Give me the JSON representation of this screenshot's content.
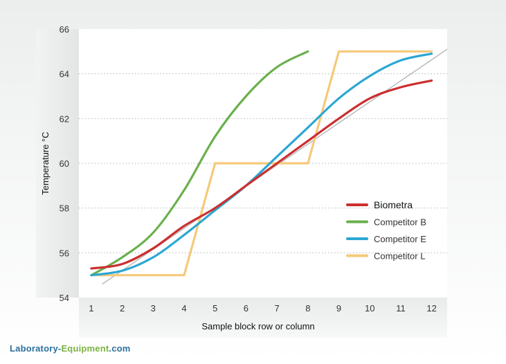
{
  "watermark": {
    "part1": "Laboratory-",
    "part2": "Equipment",
    "part3": ".com"
  },
  "chart_data": {
    "type": "line",
    "xlabel": "Sample block row or column",
    "ylabel": "Temperature °C",
    "xlim": [
      0.6,
      12.5
    ],
    "ylim": [
      54,
      66
    ],
    "x_ticks": [
      1,
      2,
      3,
      4,
      5,
      6,
      7,
      8,
      9,
      10,
      11,
      12
    ],
    "y_ticks": [
      54,
      56,
      58,
      60,
      62,
      64,
      66
    ],
    "grid": "horizontal dotted",
    "legend_position": "right-middle",
    "reference_line": {
      "x": [
        1.35,
        12.5
      ],
      "y": [
        54.6,
        65.1
      ],
      "color": "#b8bcbd"
    },
    "series": [
      {
        "name": "Biometra",
        "color": "#cc2e2e",
        "x": [
          1,
          2,
          3,
          4,
          5,
          6,
          7,
          8,
          9,
          10,
          11,
          12
        ],
        "y": [
          55.3,
          55.5,
          56.2,
          57.2,
          58.0,
          59.0,
          60.0,
          61.0,
          62.0,
          62.9,
          63.4,
          63.7
        ]
      },
      {
        "name": "Competitor B",
        "color": "#6ab04c",
        "x": [
          1,
          2,
          3,
          4,
          5,
          6,
          7,
          8
        ],
        "y": [
          55.0,
          55.8,
          56.9,
          58.8,
          61.2,
          63.0,
          64.3,
          65.0
        ]
      },
      {
        "name": "Competitor E",
        "color": "#2ba7d3",
        "x": [
          1,
          2,
          3,
          4,
          5,
          6,
          7,
          8,
          9,
          10,
          11,
          12
        ],
        "y": [
          55.0,
          55.2,
          55.8,
          56.8,
          57.9,
          59.0,
          60.3,
          61.6,
          62.9,
          63.9,
          64.6,
          64.9
        ]
      },
      {
        "name": "Competitor L",
        "color": "#f5c97a",
        "step": true,
        "x": [
          1,
          4,
          5,
          8,
          9,
          12
        ],
        "y": [
          55,
          55,
          60,
          60,
          65,
          65
        ]
      }
    ]
  }
}
